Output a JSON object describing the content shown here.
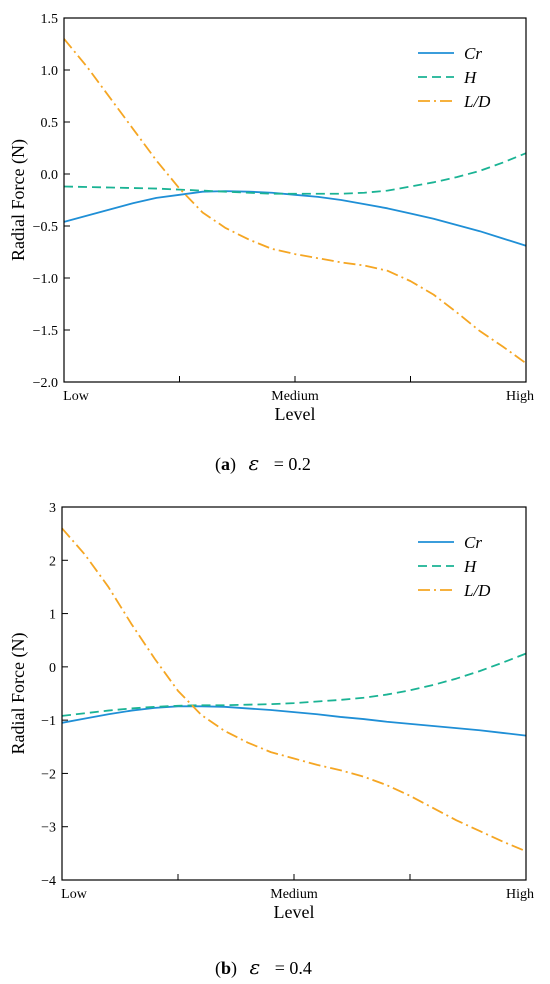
{
  "chart_data": [
    {
      "type": "line",
      "xlabel": "Level",
      "ylabel": "Radial Force (N)",
      "x_tick_labels": [
        "Low",
        "",
        "Medium",
        "",
        "High"
      ],
      "ylim": [
        -2.0,
        1.5
      ],
      "y_ticks": [
        -2.0,
        -1.5,
        -1.0,
        -0.5,
        0.0,
        0.5,
        1.0,
        1.5
      ],
      "y_tick_labels": [
        "−2.0",
        "−1.5",
        "−1.0",
        "−0.5",
        "0.0",
        "0.5",
        "1.0",
        "1.5"
      ],
      "legend_position": "top-right",
      "x": [
        0,
        0.05,
        0.1,
        0.15,
        0.2,
        0.25,
        0.3,
        0.35,
        0.4,
        0.45,
        0.5,
        0.55,
        0.6,
        0.65,
        0.7,
        0.75,
        0.8,
        0.85,
        0.9,
        0.95,
        1.0
      ],
      "series": [
        {
          "name": "Cr",
          "color": "#1f8fd6",
          "dash": "solid",
          "values": [
            -0.46,
            -0.4,
            -0.34,
            -0.28,
            -0.23,
            -0.2,
            -0.17,
            -0.165,
            -0.17,
            -0.18,
            -0.2,
            -0.22,
            -0.25,
            -0.29,
            -0.33,
            -0.38,
            -0.43,
            -0.49,
            -0.55,
            -0.62,
            -0.69
          ]
        },
        {
          "name": "H",
          "color": "#1ab394",
          "dash": "dashed",
          "values": [
            -0.12,
            -0.125,
            -0.13,
            -0.135,
            -0.14,
            -0.15,
            -0.16,
            -0.17,
            -0.18,
            -0.19,
            -0.19,
            -0.19,
            -0.19,
            -0.18,
            -0.16,
            -0.12,
            -0.08,
            -0.03,
            0.03,
            0.11,
            0.2
          ]
        },
        {
          "name": "L/D",
          "color": "#f5a623",
          "dash": "dashdot",
          "values": [
            1.3,
            1.03,
            0.73,
            0.43,
            0.13,
            -0.14,
            -0.37,
            -0.52,
            -0.63,
            -0.72,
            -0.77,
            -0.81,
            -0.85,
            -0.88,
            -0.93,
            -1.03,
            -1.16,
            -1.33,
            -1.51,
            -1.66,
            -1.82
          ]
        }
      ]
    },
    {
      "type": "line",
      "xlabel": "Level",
      "ylabel": "Radial Force (N)",
      "x_tick_labels": [
        "Low",
        "",
        "Medium",
        "",
        "High"
      ],
      "ylim": [
        -4,
        3
      ],
      "y_ticks": [
        -4,
        -3,
        -2,
        -1,
        0,
        1,
        2,
        3
      ],
      "y_tick_labels": [
        "−4",
        "−3",
        "−2",
        "−1",
        "0",
        "1",
        "2",
        "3"
      ],
      "legend_position": "top-right",
      "x": [
        0,
        0.05,
        0.1,
        0.15,
        0.2,
        0.25,
        0.3,
        0.35,
        0.4,
        0.45,
        0.5,
        0.55,
        0.6,
        0.65,
        0.7,
        0.75,
        0.8,
        0.85,
        0.9,
        0.95,
        1.0
      ],
      "series": [
        {
          "name": "Cr",
          "color": "#1f8fd6",
          "dash": "solid",
          "values": [
            -1.05,
            -0.97,
            -0.89,
            -0.82,
            -0.77,
            -0.74,
            -0.74,
            -0.75,
            -0.78,
            -0.81,
            -0.85,
            -0.89,
            -0.94,
            -0.98,
            -1.03,
            -1.07,
            -1.11,
            -1.15,
            -1.19,
            -1.24,
            -1.29
          ]
        },
        {
          "name": "H",
          "color": "#1ab394",
          "dash": "dashed",
          "values": [
            -0.92,
            -0.87,
            -0.82,
            -0.78,
            -0.75,
            -0.73,
            -0.72,
            -0.72,
            -0.71,
            -0.7,
            -0.68,
            -0.65,
            -0.62,
            -0.58,
            -0.52,
            -0.44,
            -0.34,
            -0.22,
            -0.08,
            0.08,
            0.25
          ]
        },
        {
          "name": "L/D",
          "color": "#f5a623",
          "dash": "dashdot",
          "values": [
            2.6,
            2.1,
            1.5,
            0.8,
            0.15,
            -0.45,
            -0.9,
            -1.2,
            -1.42,
            -1.6,
            -1.72,
            -1.84,
            -1.94,
            -2.06,
            -2.22,
            -2.42,
            -2.65,
            -2.88,
            -3.08,
            -3.28,
            -3.46
          ]
        }
      ]
    }
  ],
  "captions": [
    {
      "letter": "a",
      "symbol": "ε",
      "text": "= 0.2"
    },
    {
      "letter": "b",
      "symbol": "ε",
      "text": "= 0.4"
    }
  ]
}
